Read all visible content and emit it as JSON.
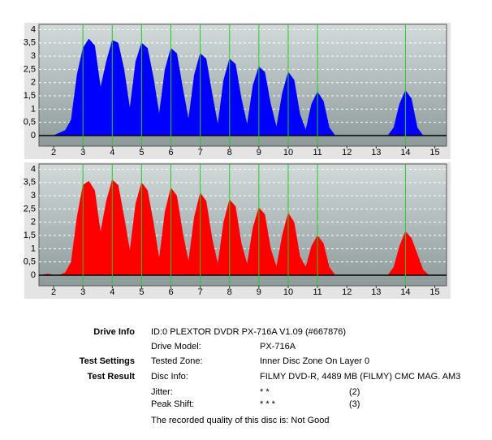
{
  "chart_data": [
    {
      "type": "area",
      "color": "#0000ff",
      "x": [
        1.6,
        1.8,
        2.0,
        2.2,
        2.4,
        2.6,
        2.8,
        3.0,
        3.2,
        3.4,
        3.6,
        3.8,
        4.0,
        4.2,
        4.4,
        4.6,
        4.8,
        5.0,
        5.2,
        5.4,
        5.6,
        5.8,
        6.0,
        6.2,
        6.4,
        6.6,
        6.8,
        7.0,
        7.2,
        7.4,
        7.6,
        7.8,
        8.0,
        8.2,
        8.4,
        8.6,
        8.8,
        9.0,
        9.2,
        9.4,
        9.6,
        9.8,
        10.0,
        10.2,
        10.4,
        10.6,
        10.8,
        11.0,
        11.2,
        11.4,
        11.6,
        11.8,
        12.0,
        12.2,
        12.4,
        12.6,
        12.8,
        13.0,
        13.2,
        13.4,
        13.6,
        13.8,
        14.0,
        14.2,
        14.4,
        14.6,
        14.8,
        15.0,
        15.2
      ],
      "values": [
        0,
        0,
        0,
        0.1,
        0.2,
        0.6,
        2.3,
        3.3,
        3.65,
        3.4,
        1.8,
        2.8,
        3.6,
        3.5,
        2.5,
        1.0,
        2.8,
        3.5,
        3.3,
        2.2,
        0.8,
        2.5,
        3.3,
        3.1,
        1.8,
        0.6,
        2.3,
        3.1,
        2.9,
        1.6,
        0.4,
        2.1,
        2.9,
        2.7,
        1.4,
        0.4,
        1.9,
        2.6,
        2.4,
        1.2,
        0.3,
        1.6,
        2.4,
        2.1,
        0.8,
        0.2,
        1.2,
        1.65,
        1.3,
        0.3,
        0,
        0,
        0,
        0,
        0,
        0,
        0,
        0,
        0,
        0,
        0.3,
        1.2,
        1.7,
        1.4,
        0.3,
        0,
        0,
        0,
        0
      ],
      "markers": [
        3,
        4,
        5,
        6,
        7,
        8,
        9,
        10,
        11,
        14
      ],
      "xlim": [
        1.5,
        15.4
      ],
      "xticks": [
        2,
        3,
        4,
        5,
        6,
        7,
        8,
        9,
        10,
        11,
        12,
        13,
        14,
        15
      ],
      "ylim": [
        -0.4,
        4.2
      ],
      "yticks": [
        0,
        {
          "value": 0.5,
          "label": "0,5"
        },
        1,
        {
          "value": 1.5,
          "label": "1,5"
        },
        2,
        {
          "value": 2.5,
          "label": "2,5"
        },
        3,
        {
          "value": 3.5,
          "label": "3,5"
        },
        4
      ],
      "grid": true
    },
    {
      "type": "area",
      "color": "#ff0000",
      "x": [
        1.6,
        1.8,
        2.0,
        2.2,
        2.4,
        2.6,
        2.8,
        3.0,
        3.2,
        3.4,
        3.6,
        3.8,
        4.0,
        4.2,
        4.4,
        4.6,
        4.8,
        5.0,
        5.2,
        5.4,
        5.6,
        5.8,
        6.0,
        6.2,
        6.4,
        6.6,
        6.8,
        7.0,
        7.2,
        7.4,
        7.6,
        7.8,
        8.0,
        8.2,
        8.4,
        8.6,
        8.8,
        9.0,
        9.2,
        9.4,
        9.6,
        9.8,
        10.0,
        10.2,
        10.4,
        10.6,
        10.8,
        11.0,
        11.2,
        11.4,
        11.6,
        11.8,
        12.0,
        12.2,
        12.4,
        12.6,
        12.8,
        13.0,
        13.2,
        13.4,
        13.6,
        13.8,
        14.0,
        14.2,
        14.4,
        14.6,
        14.8,
        15.0,
        15.2
      ],
      "values": [
        0,
        0.05,
        0,
        0,
        0.1,
        0.5,
        2.2,
        3.4,
        3.55,
        3.2,
        1.6,
        2.8,
        3.6,
        3.4,
        2.2,
        0.9,
        2.7,
        3.5,
        3.2,
        2.0,
        0.6,
        2.4,
        3.3,
        3.0,
        1.6,
        0.5,
        2.2,
        3.1,
        2.8,
        1.4,
        0.4,
        2.0,
        2.85,
        2.6,
        1.2,
        0.4,
        1.8,
        2.55,
        2.3,
        1.0,
        0.3,
        1.5,
        2.35,
        2.0,
        0.7,
        0.3,
        1.1,
        1.5,
        1.2,
        0.3,
        0,
        0,
        0,
        0,
        0,
        0,
        0,
        0,
        0,
        0,
        0.3,
        1.1,
        1.65,
        1.4,
        0.8,
        0.2,
        0,
        0,
        0
      ],
      "markers": [
        3,
        4,
        5,
        6,
        7,
        8,
        9,
        10,
        11,
        14
      ],
      "xlim": [
        1.5,
        15.4
      ],
      "xticks": [
        2,
        3,
        4,
        5,
        6,
        7,
        8,
        9,
        10,
        11,
        12,
        13,
        14,
        15
      ],
      "ylim": [
        -0.4,
        4.2
      ],
      "yticks": [
        0,
        {
          "value": 0.5,
          "label": "0,5"
        },
        1,
        {
          "value": 1.5,
          "label": "1,5"
        },
        2,
        {
          "value": 2.5,
          "label": "2,5"
        },
        3,
        {
          "value": 3.5,
          "label": "3,5"
        },
        4
      ],
      "grid": true
    }
  ],
  "info": {
    "drive_info": {
      "label": "Drive Info",
      "value": "ID:0 PLEXTOR DVDR PX-716A V1.09 (#667876)"
    },
    "drive_model": {
      "label": "Drive Model:",
      "value": "PX-716A"
    },
    "test_settings": {
      "label": "Test Settings",
      "key": "Tested Zone:",
      "value": "Inner Disc Zone On Layer 0"
    },
    "test_result": {
      "label": "Test Result",
      "key": "Disc Info:",
      "value": "FILMY DVD-R, 4489 MB (FILMY) CMC MAG. AM3"
    },
    "jitter": {
      "key": "Jitter:",
      "stars": "* *",
      "score": "(2)"
    },
    "peak_shift": {
      "key": "Peak Shift:",
      "stars": "* * *",
      "score": "(3)"
    },
    "quality": "The recorded quality of this disc is: Not Good"
  }
}
